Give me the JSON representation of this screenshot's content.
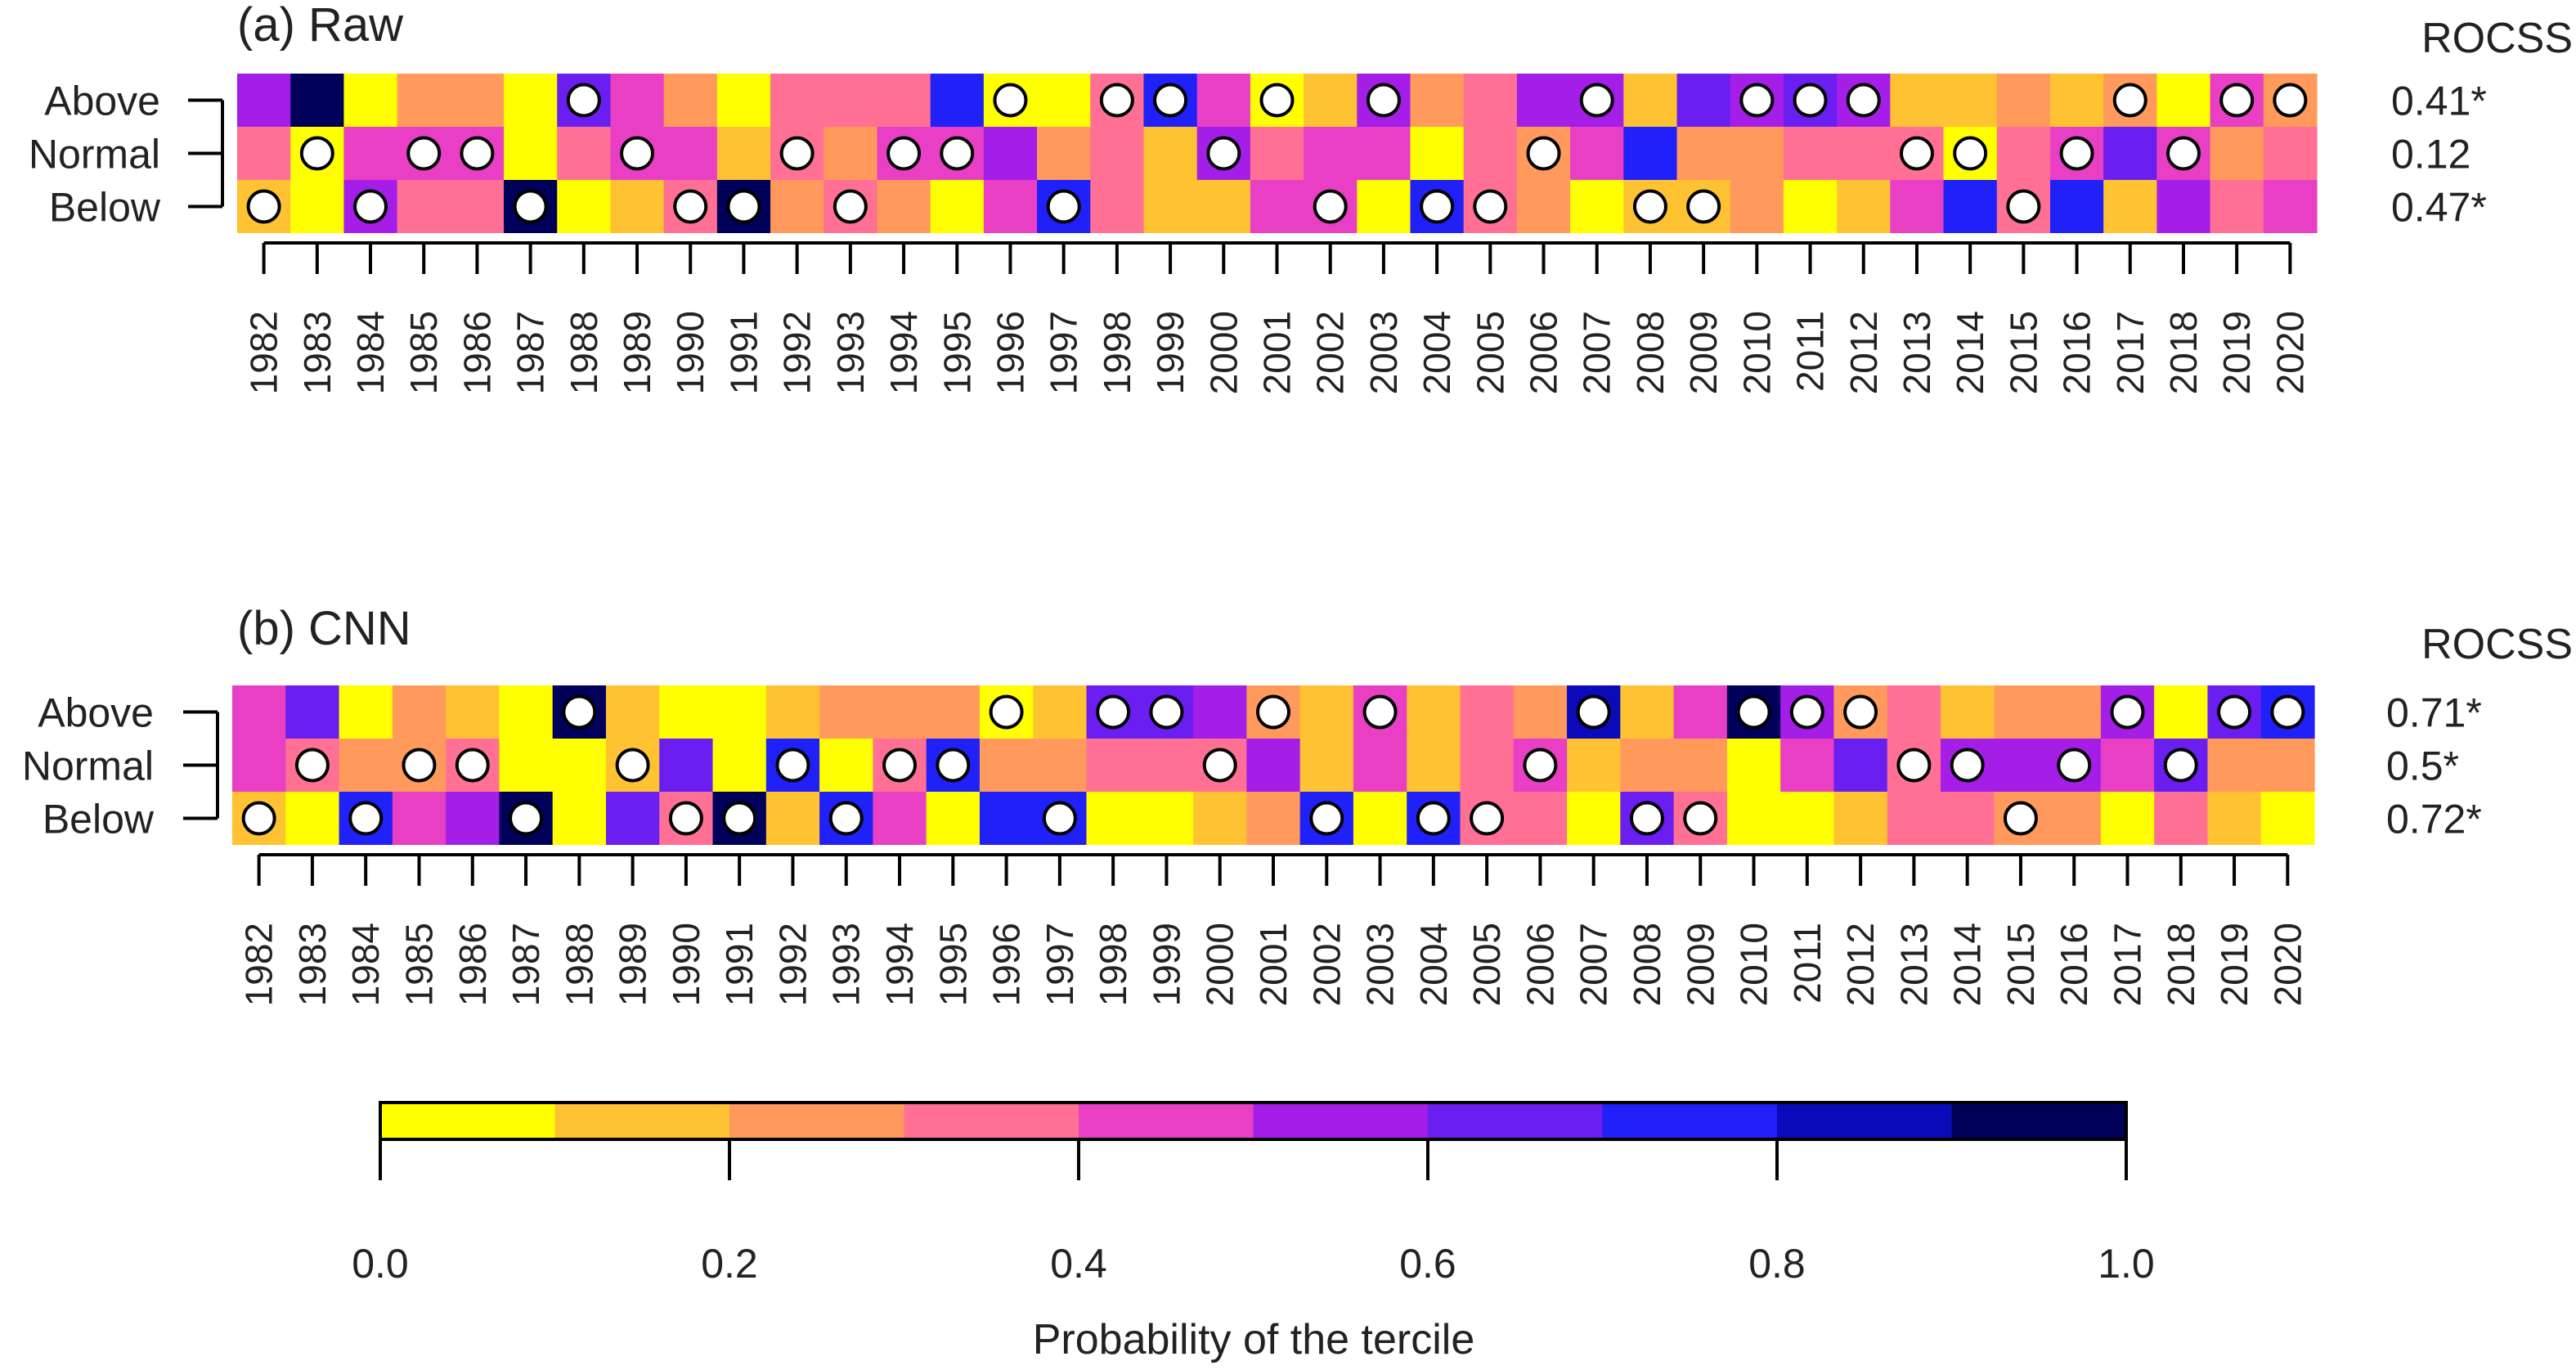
{
  "chart_data": {
    "type": "heatmap",
    "colorbar": {
      "label": "Probability of the tercile",
      "bins": [
        0.0,
        0.1,
        0.2,
        0.3,
        0.4,
        0.5,
        0.6,
        0.7,
        0.8,
        0.9,
        1.0
      ],
      "colors": [
        "#ffff00",
        "#ffc233",
        "#ff9a5c",
        "#ff7094",
        "#e83fc4",
        "#a41ee8",
        "#6a1ef0",
        "#2020f8",
        "#0a0ab8",
        "#00005a"
      ],
      "tick_values": [
        0.0,
        0.2,
        0.4,
        0.6,
        0.8,
        1.0
      ],
      "tick_labels": [
        "0.0",
        "0.2",
        "0.4",
        "0.6",
        "0.8",
        "1.0"
      ]
    },
    "panels": [
      {
        "title": "(a) Raw",
        "score_header": "ROCSS",
        "years": [
          "1982",
          "1983",
          "1984",
          "1985",
          "1986",
          "1987",
          "1988",
          "1989",
          "1990",
          "1991",
          "1992",
          "1993",
          "1994",
          "1995",
          "1996",
          "1997",
          "1998",
          "1999",
          "2000",
          "2001",
          "2002",
          "2003",
          "2004",
          "2005",
          "2006",
          "2007",
          "2008",
          "2009",
          "2010",
          "2011",
          "2012",
          "2013",
          "2014",
          "2015",
          "2016",
          "2017",
          "2018",
          "2019",
          "2020"
        ],
        "rows": [
          {
            "label": "Above",
            "score": "0.41*",
            "probability": [
              0.55,
              0.95,
              0.05,
              0.25,
              0.25,
              0.05,
              0.65,
              0.45,
              0.25,
              0.05,
              0.35,
              0.35,
              0.35,
              0.75,
              0.05,
              0.05,
              0.35,
              0.75,
              0.45,
              0.05,
              0.15,
              0.55,
              0.25,
              0.35,
              0.55,
              0.55,
              0.15,
              0.65,
              0.55,
              0.65,
              0.55,
              0.15,
              0.15,
              0.25,
              0.15,
              0.25,
              0.05,
              0.45,
              0.25
            ],
            "observed": [
              0,
              0,
              0,
              0,
              0,
              0,
              1,
              0,
              0,
              0,
              0,
              0,
              0,
              0,
              1,
              0,
              1,
              1,
              0,
              1,
              0,
              1,
              0,
              0,
              0,
              1,
              0,
              0,
              1,
              1,
              1,
              0,
              0,
              0,
              0,
              1,
              0,
              1,
              1
            ]
          },
          {
            "label": "Normal",
            "score": "0.12",
            "probability": [
              0.35,
              0.05,
              0.45,
              0.45,
              0.45,
              0.05,
              0.35,
              0.45,
              0.45,
              0.15,
              0.35,
              0.25,
              0.45,
              0.45,
              0.55,
              0.25,
              0.35,
              0.15,
              0.55,
              0.35,
              0.45,
              0.45,
              0.05,
              0.35,
              0.25,
              0.45,
              0.75,
              0.25,
              0.25,
              0.35,
              0.35,
              0.35,
              0.05,
              0.35,
              0.45,
              0.65,
              0.45,
              0.25,
              0.35
            ],
            "observed": [
              0,
              1,
              0,
              1,
              1,
              0,
              0,
              1,
              0,
              0,
              1,
              0,
              1,
              1,
              0,
              0,
              0,
              0,
              1,
              0,
              0,
              0,
              0,
              0,
              1,
              0,
              0,
              0,
              0,
              0,
              0,
              1,
              1,
              0,
              1,
              0,
              1,
              0,
              0
            ]
          },
          {
            "label": "Below",
            "score": "0.47*",
            "probability": [
              0.15,
              0.05,
              0.55,
              0.35,
              0.35,
              0.95,
              0.05,
              0.15,
              0.35,
              0.95,
              0.25,
              0.35,
              0.25,
              0.05,
              0.45,
              0.75,
              0.35,
              0.15,
              0.15,
              0.45,
              0.45,
              0.05,
              0.75,
              0.35,
              0.25,
              0.05,
              0.15,
              0.15,
              0.25,
              0.05,
              0.15,
              0.45,
              0.75,
              0.35,
              0.75,
              0.15,
              0.55,
              0.35,
              0.45
            ],
            "observed": [
              1,
              0,
              1,
              0,
              0,
              1,
              0,
              0,
              1,
              1,
              0,
              1,
              0,
              0,
              0,
              1,
              0,
              0,
              0,
              0,
              1,
              0,
              1,
              1,
              0,
              0,
              1,
              1,
              0,
              0,
              0,
              0,
              0,
              1,
              0,
              0,
              0,
              0,
              0
            ]
          }
        ]
      },
      {
        "title": "(b) CNN",
        "score_header": "ROCSS",
        "years": [
          "1982",
          "1983",
          "1984",
          "1985",
          "1986",
          "1987",
          "1988",
          "1989",
          "1990",
          "1991",
          "1992",
          "1993",
          "1994",
          "1995",
          "1996",
          "1997",
          "1998",
          "1999",
          "2000",
          "2001",
          "2002",
          "2003",
          "2004",
          "2005",
          "2006",
          "2007",
          "2008",
          "2009",
          "2010",
          "2011",
          "2012",
          "2013",
          "2014",
          "2015",
          "2016",
          "2017",
          "2018",
          "2019",
          "2020"
        ],
        "rows": [
          {
            "label": "Above",
            "score": "0.71*",
            "probability": [
              0.45,
              0.65,
              0.05,
              0.25,
              0.15,
              0.05,
              0.95,
              0.15,
              0.05,
              0.05,
              0.15,
              0.25,
              0.25,
              0.25,
              0.05,
              0.15,
              0.65,
              0.65,
              0.55,
              0.25,
              0.15,
              0.45,
              0.15,
              0.35,
              0.25,
              0.85,
              0.15,
              0.45,
              0.95,
              0.55,
              0.25,
              0.35,
              0.15,
              0.25,
              0.25,
              0.55,
              0.05,
              0.65,
              0.75
            ],
            "observed": [
              0,
              0,
              0,
              0,
              0,
              0,
              1,
              0,
              0,
              0,
              0,
              0,
              0,
              0,
              1,
              0,
              1,
              1,
              0,
              1,
              0,
              1,
              0,
              0,
              0,
              1,
              0,
              0,
              1,
              1,
              1,
              0,
              0,
              0,
              0,
              1,
              0,
              1,
              1
            ]
          },
          {
            "label": "Normal",
            "score": "0.5*",
            "probability": [
              0.45,
              0.35,
              0.25,
              0.25,
              0.35,
              0.05,
              0.05,
              0.15,
              0.65,
              0.05,
              0.75,
              0.05,
              0.35,
              0.75,
              0.25,
              0.25,
              0.35,
              0.35,
              0.35,
              0.55,
              0.15,
              0.45,
              0.15,
              0.35,
              0.45,
              0.15,
              0.25,
              0.25,
              0.05,
              0.45,
              0.65,
              0.35,
              0.55,
              0.55,
              0.55,
              0.45,
              0.65,
              0.25,
              0.25
            ],
            "observed": [
              0,
              1,
              0,
              1,
              1,
              0,
              0,
              1,
              0,
              0,
              1,
              0,
              1,
              1,
              0,
              0,
              0,
              0,
              1,
              0,
              0,
              0,
              0,
              0,
              1,
              0,
              0,
              0,
              0,
              0,
              0,
              1,
              1,
              0,
              1,
              0,
              1,
              0,
              0
            ]
          },
          {
            "label": "Below",
            "score": "0.72*",
            "probability": [
              0.15,
              0.05,
              0.75,
              0.45,
              0.55,
              0.95,
              0.05,
              0.65,
              0.35,
              0.95,
              0.15,
              0.75,
              0.45,
              0.05,
              0.75,
              0.75,
              0.05,
              0.05,
              0.15,
              0.25,
              0.75,
              0.05,
              0.75,
              0.35,
              0.35,
              0.05,
              0.65,
              0.35,
              0.05,
              0.05,
              0.15,
              0.35,
              0.35,
              0.25,
              0.25,
              0.05,
              0.35,
              0.15,
              0.05
            ],
            "observed": [
              1,
              0,
              1,
              0,
              0,
              1,
              0,
              0,
              1,
              1,
              0,
              1,
              0,
              0,
              0,
              1,
              0,
              0,
              0,
              0,
              1,
              0,
              1,
              1,
              0,
              0,
              1,
              1,
              0,
              0,
              0,
              0,
              0,
              1,
              0,
              0,
              0,
              0,
              0
            ]
          }
        ]
      }
    ]
  }
}
